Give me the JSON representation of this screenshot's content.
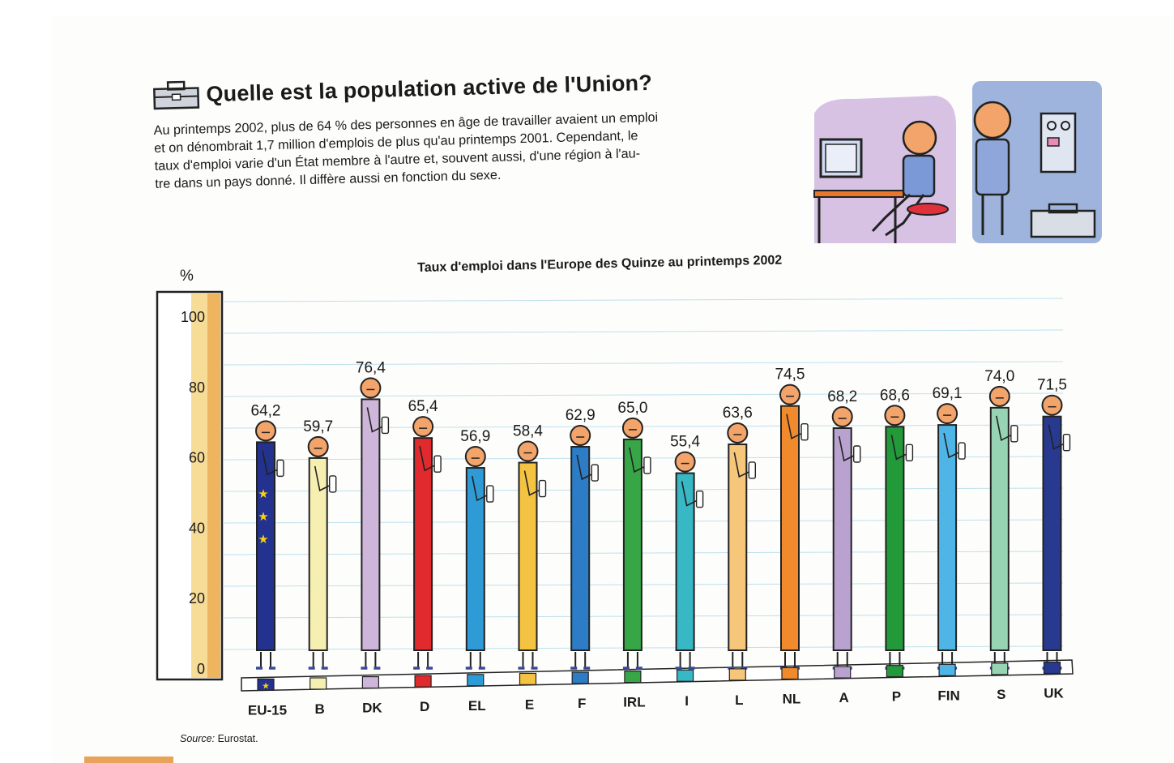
{
  "header": {
    "title": "Quelle est la population active de l'Union?",
    "intro_lines": [
      "Au printemps 2002, plus de 64 % des personnes en âge de travailler avaient un emploi",
      "et on dénombrait 1,7 million d'emplois de plus qu'au printemps 2001. Cependant, le",
      "taux d'emploi varie d'un État membre à l'autre et, souvent aussi, d'une région à l'au-",
      "tre dans un pays donné. Il diffère aussi en fonction du sexe."
    ]
  },
  "source_label": "Source:",
  "source_value": "Eurostat.",
  "chart_data": {
    "type": "bar",
    "title": "Taux d'emploi dans l'Europe des Quinze au printemps 2002",
    "ylabel": "%",
    "ylim": [
      0,
      100
    ],
    "yticks": [
      "0",
      "20",
      "40",
      "60",
      "80",
      "100"
    ],
    "grid": true,
    "categories": [
      "EU-15",
      "B",
      "DK",
      "D",
      "EL",
      "E",
      "F",
      "IRL",
      "I",
      "L",
      "NL",
      "A",
      "P",
      "FIN",
      "S",
      "UK"
    ],
    "values": [
      64.2,
      59.7,
      76.4,
      65.4,
      56.9,
      58.4,
      62.9,
      65.0,
      55.4,
      63.6,
      74.5,
      68.2,
      68.6,
      69.1,
      74.0,
      71.5
    ],
    "value_labels": [
      "64,2",
      "59,7",
      "76,4",
      "65,4",
      "56,9",
      "58,4",
      "62,9",
      "65,0",
      "55,4",
      "63,6",
      "74,5",
      "68,2",
      "68,6",
      "69,1",
      "74,0",
      "71,5"
    ],
    "colors": [
      "#23318f",
      "#f6efb2",
      "#cdb6d9",
      "#e02a2d",
      "#2f9bd6",
      "#f5c342",
      "#2d7cc6",
      "#37a646",
      "#38b7c4",
      "#f6c67a",
      "#f08a2c",
      "#b9a2cf",
      "#239a3a",
      "#4eb5e6",
      "#96d4b3",
      "#283a8f"
    ]
  }
}
